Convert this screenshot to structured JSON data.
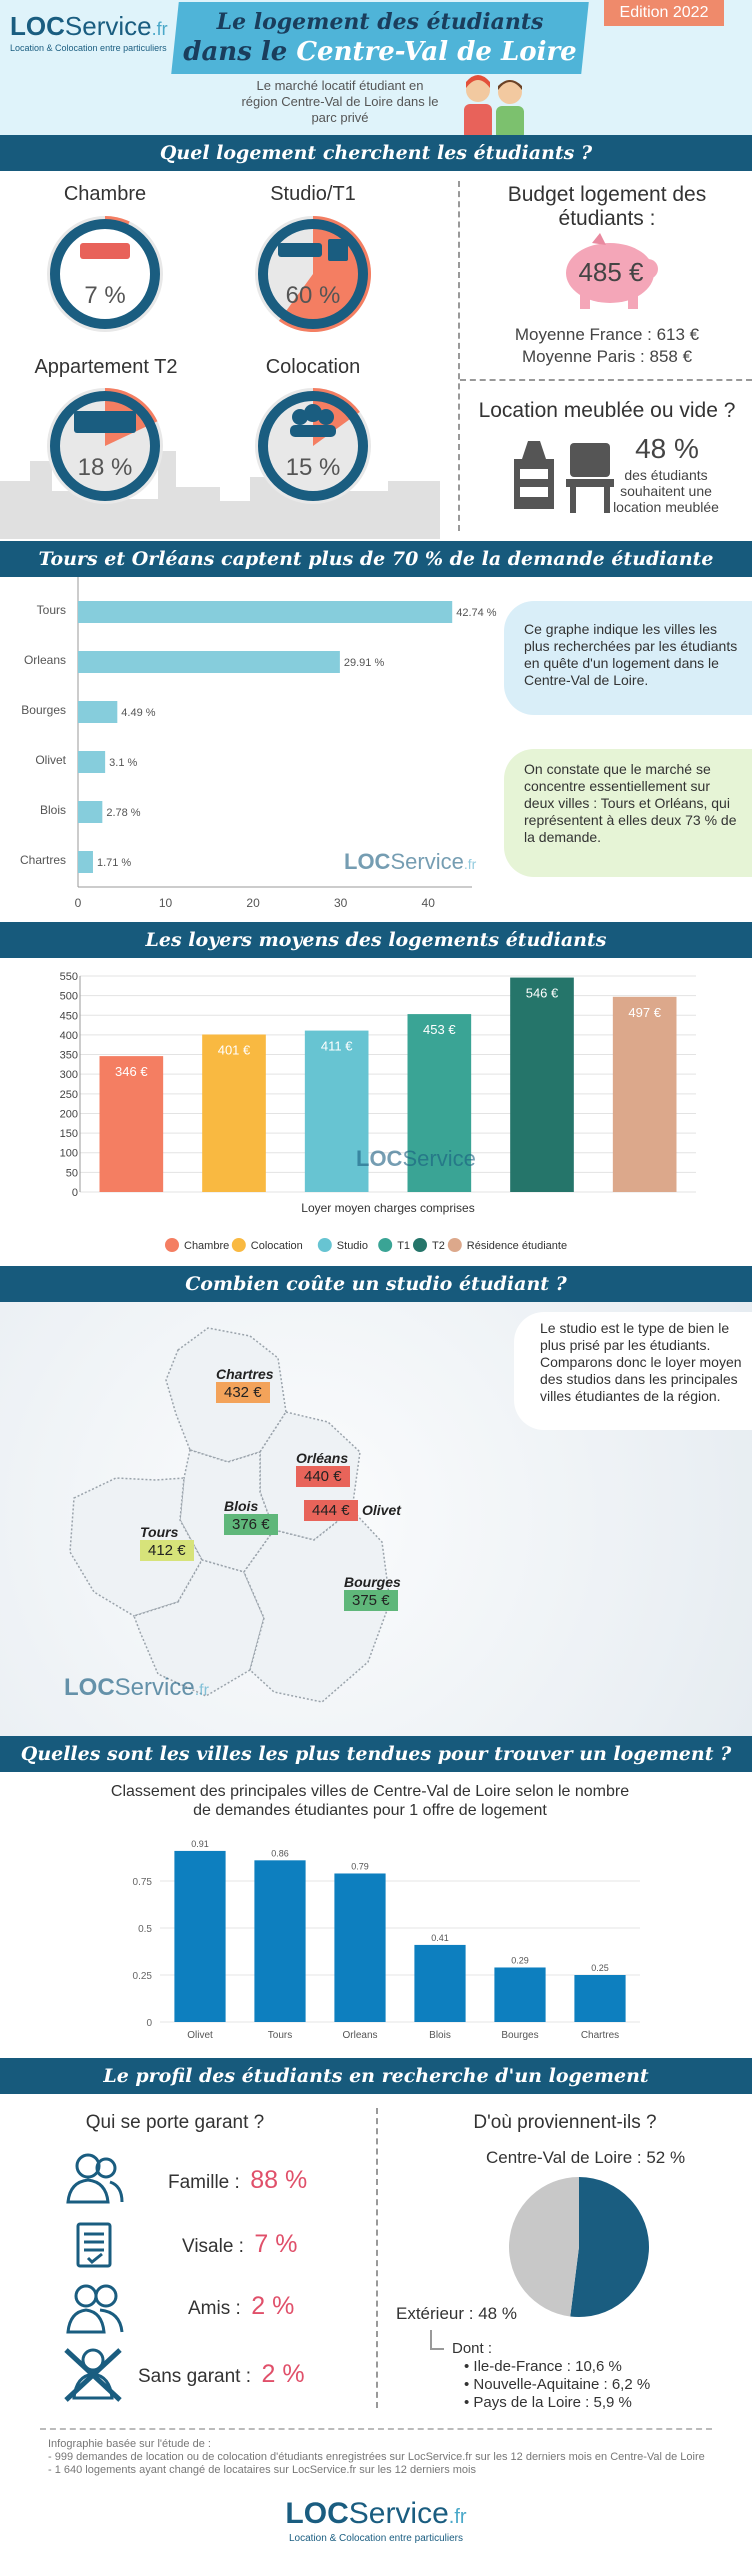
{
  "header": {
    "brand_loc": "LOC",
    "brand_service": "Service",
    "brand_tld": ".fr",
    "brand_tagline": "Location & Colocation entre particuliers",
    "title_line1": "Le logement des étudiants",
    "title_line2_prefix": "dans le ",
    "title_line2_highlight": "Centre-Val de Loire",
    "edition": "Edition 2022",
    "subtitle": "Le marché locatif étudiant en région Centre-Val de Loire dans le parc privé"
  },
  "section1": {
    "band": "Quel logement cherchent les étudiants ?",
    "types": [
      {
        "label": "Chambre",
        "pct": "7 %",
        "value": 0.07,
        "icon": "bed-icon"
      },
      {
        "label": "Studio/T1",
        "pct": "60 %",
        "value": 0.6,
        "icon": "sofa-icon"
      },
      {
        "label": "Appartement T2",
        "pct": "18 %",
        "value": 0.18,
        "icon": "apartment-icon"
      },
      {
        "label": "Colocation",
        "pct": "15 %",
        "value": 0.15,
        "icon": "people-icon"
      }
    ],
    "budget_title": "Budget logement des étudiants :",
    "budget_value": "485 €",
    "budget_fr": "Moyenne France : 613 €",
    "budget_paris": "Moyenne Paris : 858 €",
    "furnished_title": "Location meublée ou vide ?",
    "furnished_pct": "48 %",
    "furnished_text": "des étudiants souhaitent une location meublée"
  },
  "section2": {
    "band": "Tours et Orléans captent plus de 70 % de la demande étudiante",
    "note1": "Ce graphe indique les villes les plus recherchées par les étudiants en quête d'un logement dans le Centre-Val de Loire.",
    "note2": "On constate que le marché se concentre essentiellement sur deux villes : Tours et Orléans, qui représentent à elles deux 73 % de la demande."
  },
  "section3": {
    "band": "Les loyers moyens des logements étudiants",
    "xlabel": "Loyer moyen charges comprises"
  },
  "section4": {
    "band": "Combien coûte un studio étudiant ?",
    "note": "Le studio est le type de bien le plus prisé par les étudiants. Comparons donc le loyer moyen des studios dans les principales villes étudiantes de la région.",
    "cities": [
      {
        "name": "Chartres",
        "price": "432 €",
        "color": "#f3a35a"
      },
      {
        "name": "Orléans",
        "price": "440 €",
        "color": "#e8645a"
      },
      {
        "name": "Olivet",
        "price": "444 €",
        "color": "#e8645a"
      },
      {
        "name": "Blois",
        "price": "376 €",
        "color": "#5fb77a"
      },
      {
        "name": "Tours",
        "price": "412 €",
        "color": "#d7e37a"
      },
      {
        "name": "Bourges",
        "price": "375 €",
        "color": "#5fb77a"
      }
    ]
  },
  "section5": {
    "band": "Quelles sont les villes les plus tendues pour trouver un logement  ?",
    "subtitle": "Classement des principales villes de Centre-Val de Loire selon le nombre de demandes étudiantes pour 1 offre de logement"
  },
  "section6": {
    "band": "Le profil des étudiants en recherche d'un logement",
    "guarantor_title": "Qui se porte garant ?",
    "guarantors": [
      {
        "label": "Famille :",
        "pct": "88 %",
        "icon": "family-icon"
      },
      {
        "label": "Visale :",
        "pct": "7 %",
        "icon": "document-icon"
      },
      {
        "label": "Amis :",
        "pct": "2 %",
        "icon": "friends-icon"
      },
      {
        "label": "Sans garant :",
        "pct": "2 %",
        "icon": "no-guarantor-icon"
      }
    ],
    "origin_title": "D'où proviennent-ils ?",
    "origin_region": "Centre-Val de Loire : 52 %",
    "origin_ext": "Extérieur : 48 %",
    "origin_dont": "Dont :",
    "origin_list": [
      "Ile-de-France : 10,6 %",
      "Nouvelle-Aquitaine : 6,2 %",
      "Pays de la Loire : 5,9 %"
    ]
  },
  "footer": {
    "intro": "Infographie basée sur l'étude de :",
    "line1": "- 999 demandes de location ou de colocation d'étudiants enregistrées sur LocService.fr sur les 12 derniers mois en Centre-Val de Loire",
    "line2": "- 1 640 logements ayant changé de locataires sur LocService.fr sur les 12 derniers mois"
  },
  "chart_data": [
    {
      "type": "bar",
      "orientation": "horizontal",
      "categories": [
        "Tours",
        "Orleans",
        "Bourges",
        "Olivet",
        "Blois",
        "Chartres"
      ],
      "values": [
        42.74,
        29.91,
        4.49,
        3.1,
        2.78,
        1.71
      ],
      "labels": [
        "42.74 %",
        "29.91 %",
        "4.49 %",
        "3.1 %",
        "2.78 %",
        "1.71 %"
      ],
      "xticks": [
        "0",
        "10",
        "20",
        "30",
        "40"
      ],
      "xlim": [
        0,
        45
      ],
      "color": "#86cddc"
    },
    {
      "type": "bar",
      "categories": [
        "Chambre",
        "Colocation",
        "Studio",
        "T1",
        "T2",
        "Résidence étudiante"
      ],
      "values": [
        346,
        401,
        411,
        453,
        546,
        497
      ],
      "labels": [
        "346 €",
        "401 €",
        "411 €",
        "453 €",
        "546 €",
        "497 €"
      ],
      "colors": [
        "#f47e62",
        "#f9b941",
        "#67c4d2",
        "#3aa495",
        "#25756a",
        "#dca88b"
      ],
      "yticks": [
        "0",
        "50",
        "100",
        "150",
        "200",
        "250",
        "300",
        "350",
        "400",
        "450",
        "500",
        "550"
      ],
      "ylim": [
        0,
        550
      ],
      "xlabel": "Loyer moyen charges comprises",
      "legend_placement": "bottom",
      "grid": true
    },
    {
      "type": "bar",
      "categories": [
        "Olivet",
        "Tours",
        "Orleans",
        "Blois",
        "Bourges",
        "Chartres"
      ],
      "values": [
        0.91,
        0.86,
        0.79,
        0.41,
        0.29,
        0.25
      ],
      "labels": [
        "0.91",
        "0.86",
        "0.79",
        "0.41",
        "0.29",
        "0.25"
      ],
      "yticks": [
        "0",
        "0.25",
        "0.5",
        "0.75"
      ],
      "ylim": [
        0,
        1
      ],
      "color": "#0d7fbf",
      "grid": true
    },
    {
      "type": "pie",
      "categories": [
        "Centre-Val de Loire",
        "Extérieur"
      ],
      "values": [
        52,
        48
      ],
      "colors": [
        "#1a5d80",
        "#c8c8c8"
      ]
    }
  ]
}
